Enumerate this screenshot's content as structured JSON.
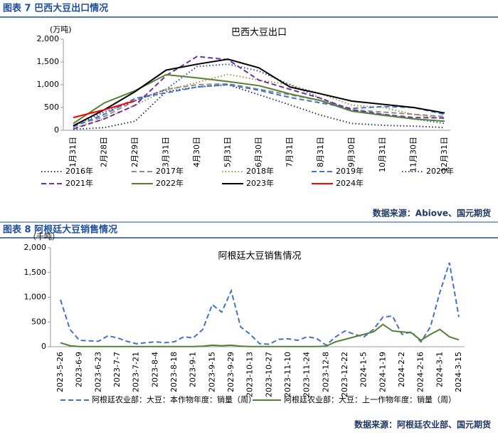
{
  "chart_data": [
    {
      "type": "line",
      "caption": "图表 7 巴西大豆出口情况",
      "title": "巴西大豆出口",
      "y_unit": "(万吨)",
      "source": "数据来源：Abiove、国元期货",
      "categories": [
        "1月31日",
        "2月28日",
        "2月29日",
        "3月31日",
        "4月30日",
        "5月31日",
        "6月30日",
        "7月31日",
        "8月31日",
        "9月30日",
        "10月31日",
        "11月30日",
        "12月31日"
      ],
      "ylim": [
        0,
        2000
      ],
      "yticks": [
        0,
        500,
        {
          "value": 1000,
          "label": "1,000"
        },
        {
          "value": 1500,
          "label": "1,500"
        },
        {
          "value": 2000,
          "label": "2,000"
        }
      ],
      "series": [
        {
          "name": "2016年",
          "color": "#1f3864",
          "dash": "dot",
          "values": [
            20,
            60,
            200,
            850,
            950,
            1000,
            780,
            560,
            330,
            150,
            110,
            90,
            60
          ]
        },
        {
          "name": "2017年",
          "color": "#8c8c8c",
          "dash": "dash",
          "values": [
            100,
            300,
            650,
            900,
            1000,
            1020,
            900,
            780,
            650,
            450,
            400,
            350,
            300
          ]
        },
        {
          "name": "2018年",
          "color": "#9a9a3a",
          "dash": "dot",
          "values": [
            50,
            250,
            550,
            880,
            1050,
            1230,
            1100,
            1000,
            800,
            550,
            500,
            350,
            250
          ]
        },
        {
          "name": "2019年",
          "color": "#4472c4",
          "dash": "dash",
          "values": [
            80,
            350,
            700,
            820,
            950,
            1000,
            880,
            720,
            600,
            480,
            520,
            500,
            350
          ]
        },
        {
          "name": "2020年",
          "color": "#2f4f9f",
          "dash": "dot",
          "values": [
            100,
            400,
            650,
            900,
            1400,
            1450,
            1300,
            1000,
            700,
            420,
            350,
            250,
            150
          ]
        },
        {
          "name": "2021年",
          "color": "#7030a0",
          "dash": "dash",
          "values": [
            30,
            250,
            550,
            1200,
            1620,
            1550,
            1100,
            900,
            700,
            450,
            350,
            280,
            270
          ]
        },
        {
          "name": "2022年",
          "color": "#548235",
          "dash": "solid",
          "values": [
            150,
            600,
            870,
            1220,
            1150,
            1070,
            980,
            800,
            650,
            420,
            330,
            250,
            200
          ]
        },
        {
          "name": "2023年",
          "color": "#000000",
          "dash": "solid",
          "values": [
            100,
            450,
            850,
            1320,
            1450,
            1560,
            1370,
            950,
            800,
            640,
            570,
            500,
            380
          ]
        },
        {
          "name": "2024年",
          "color": "#ff0000",
          "dash": "solid",
          "values": [
            280,
            450,
            650,
            null,
            null,
            null,
            null,
            null,
            null,
            null,
            null,
            null,
            null
          ]
        }
      ]
    },
    {
      "type": "line",
      "caption": "图表 8 阿根廷大豆销售情况",
      "title": "阿根廷大豆销售情况",
      "y_unit": "（千吨）",
      "source": "数据来源：阿根廷农业部、国元期货",
      "categories": [
        "2023-5-26",
        null,
        "2023-6-9",
        null,
        "2023-6-23",
        null,
        "2023-7-7",
        null,
        "2023-7-21",
        null,
        "2023-8-4",
        null,
        "2023-8-18",
        null,
        "2023-9-1",
        null,
        "2023-9-15",
        null,
        "2023-9-29",
        null,
        "2023-10-13",
        null,
        "2023-10-27",
        null,
        "2023-11-10",
        null,
        "2023-11-24",
        null,
        "2023-12-8",
        null,
        "2023-12-22",
        null,
        "2024-1-5",
        null,
        "2024-1-19",
        null,
        "2024-2-2",
        null,
        "2024-2-16",
        null,
        "2024-3-1",
        null,
        "2024-3-15"
      ],
      "ylim": [
        0,
        2000
      ],
      "yticks": [
        0,
        500,
        {
          "value": 1000,
          "label": "1,000"
        },
        {
          "value": 1500,
          "label": "1,500"
        },
        {
          "value": 2000,
          "label": "2,000"
        }
      ],
      "series": [
        {
          "name": "阿根廷农业部：大豆：本作物年度：销量（周）",
          "color": "#4472c4",
          "dash": "dash",
          "values": [
            950,
            350,
            130,
            120,
            110,
            220,
            180,
            110,
            60,
            80,
            100,
            80,
            100,
            200,
            180,
            350,
            850,
            700,
            1130,
            400,
            250,
            60,
            50,
            150,
            160,
            130,
            200,
            170,
            30,
            200,
            320,
            250,
            200,
            350,
            600,
            620,
            250,
            300,
            100,
            400,
            1100,
            1700,
            600
          ]
        },
        {
          "name": "阿根廷农业部：大豆：上一作物年度：销量（周）",
          "color": "#548235",
          "dash": "solid",
          "values": [
            80,
            20,
            5,
            5,
            5,
            5,
            5,
            5,
            5,
            5,
            5,
            5,
            5,
            5,
            5,
            10,
            30,
            20,
            30,
            10,
            5,
            5,
            5,
            5,
            5,
            5,
            5,
            5,
            10,
            100,
            150,
            200,
            250,
            300,
            450,
            320,
            300,
            280,
            130,
            250,
            350,
            200,
            140
          ]
        }
      ]
    }
  ]
}
